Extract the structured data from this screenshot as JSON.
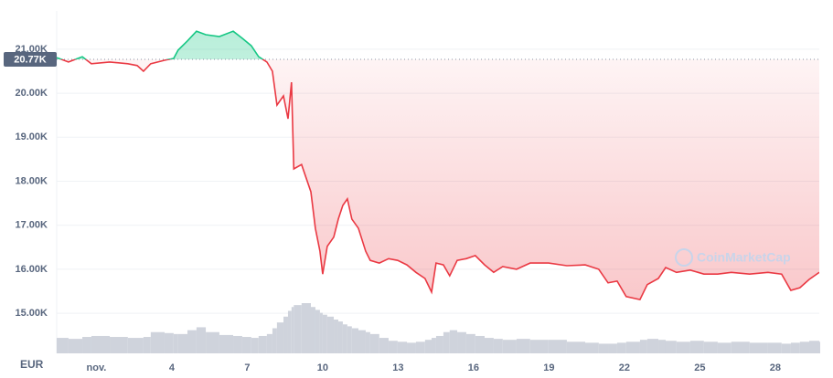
{
  "chart_data": {
    "type": "line",
    "currency": "EUR",
    "watermark": "CoinMarketCap",
    "x": [
      -0.58,
      -0.11,
      0.44,
      0.8,
      1.53,
      2.25,
      2.62,
      2.87,
      3.16,
      3.71,
      4.07,
      4.25,
      4.62,
      4.98,
      5.35,
      5.89,
      6.44,
      6.8,
      7.16,
      7.45,
      7.78,
      8.0,
      8.18,
      8.44,
      8.62,
      8.76,
      8.85,
      9.16,
      9.53,
      9.71,
      9.89,
      10.0,
      10.18,
      10.44,
      10.62,
      10.8,
      10.98,
      11.16,
      11.42,
      11.71,
      11.89,
      12.25,
      12.62,
      12.98,
      13.35,
      13.71,
      14.07,
      14.33,
      14.51,
      14.8,
      15.05,
      15.35,
      15.71,
      16.07,
      16.44,
      16.8,
      17.16,
      17.71,
      18.25,
      18.98,
      19.71,
      20.44,
      20.98,
      21.35,
      21.71,
      22.07,
      22.62,
      22.91,
      23.35,
      23.64,
      24.07,
      24.62,
      25.16,
      25.71,
      26.25,
      26.98,
      27.71,
      28.25,
      28.62,
      28.98,
      29.35,
      29.75
    ],
    "values": [
      20810,
      20710,
      20830,
      20670,
      20710,
      20670,
      20630,
      20500,
      20670,
      20750,
      20790,
      20980,
      21190,
      21410,
      21330,
      21290,
      21410,
      21250,
      21080,
      20830,
      20710,
      20500,
      19730,
      19940,
      19420,
      20250,
      18280,
      18380,
      17760,
      16930,
      16410,
      15890,
      16520,
      16730,
      17140,
      17450,
      17600,
      17140,
      16930,
      16410,
      16200,
      16140,
      16240,
      16200,
      16100,
      15930,
      15790,
      15480,
      16140,
      16100,
      15850,
      16200,
      16240,
      16310,
      16100,
      15930,
      16060,
      16000,
      16140,
      16140,
      16080,
      16100,
      16000,
      15690,
      15730,
      15380,
      15310,
      15650,
      15790,
      16040,
      15930,
      15980,
      15890,
      15890,
      15930,
      15890,
      15930,
      15890,
      15520,
      15580,
      15770,
      15930
    ],
    "up_color": "#16c784",
    "down_color": "#ea3943",
    "reference": {
      "value": 20770,
      "label": "20.77K"
    },
    "volume": {
      "color": "#cfd3dc",
      "values": [
        16,
        15,
        17,
        18,
        17,
        16,
        16,
        17,
        22,
        21,
        20,
        20,
        24,
        27,
        22,
        19,
        18,
        17,
        16,
        18,
        20,
        26,
        32,
        38,
        44,
        48,
        50,
        52,
        48,
        45,
        42,
        40,
        38,
        35,
        33,
        30,
        28,
        26,
        24,
        22,
        20,
        16,
        13,
        12,
        11,
        12,
        14,
        16,
        18,
        22,
        24,
        22,
        20,
        18,
        16,
        15,
        14,
        15,
        14,
        14,
        12,
        11,
        10,
        10,
        11,
        12,
        14,
        15,
        14,
        13,
        12,
        13,
        12,
        11,
        12,
        11,
        11,
        10,
        11,
        12,
        13,
        12
      ]
    },
    "xlim": [
      -0.58,
      29.75
    ],
    "ylim": [
      14130,
      21870
    ],
    "xticks": [
      {
        "value": 1,
        "label": "nov."
      },
      4,
      7,
      10,
      13,
      16,
      19,
      22,
      25,
      28
    ],
    "yticks": [
      {
        "value": 15000,
        "label": "15.00K"
      },
      {
        "value": 16000,
        "label": "16.00K"
      },
      {
        "value": 17000,
        "label": "17.00K"
      },
      {
        "value": 18000,
        "label": "18.00K"
      },
      {
        "value": 19000,
        "label": "19.00K"
      },
      {
        "value": 20000,
        "label": "20.00K"
      },
      {
        "value": 21000,
        "label": "21.00K"
      }
    ],
    "grid": true
  }
}
